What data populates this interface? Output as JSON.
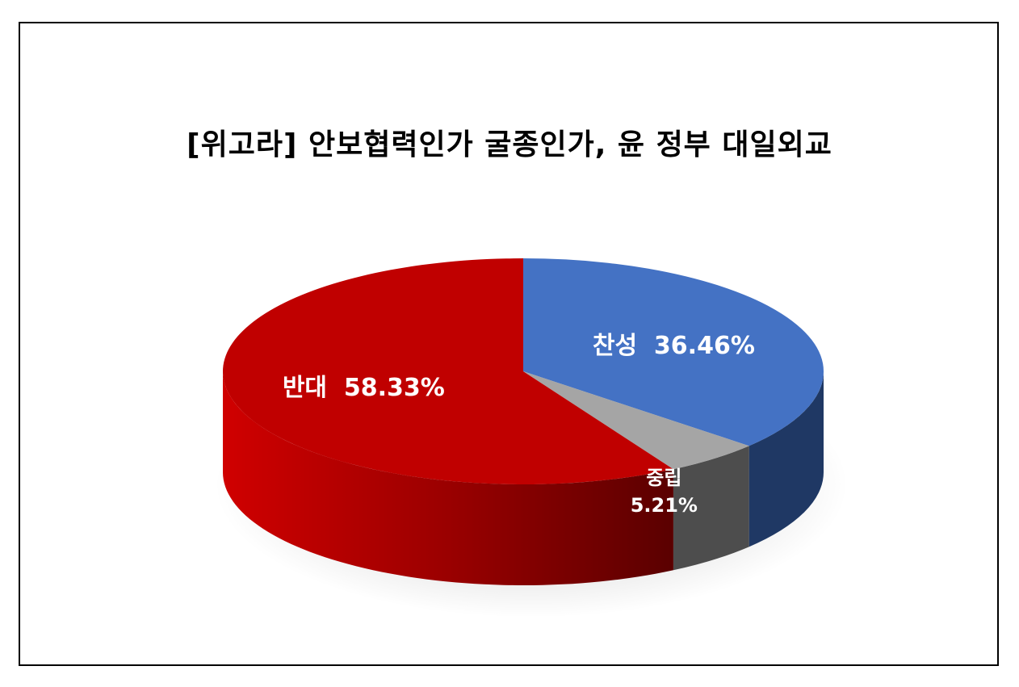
{
  "chart_data": {
    "type": "pie",
    "title": "[위고라] 안보협력인가 굴종인가, 윤 정부 대일외교",
    "slices": [
      {
        "label": "찬성",
        "value": 36.46,
        "value_text": "36.46%",
        "color": "#4472c4",
        "side_color": "#1f3864"
      },
      {
        "label": "중립",
        "value": 5.21,
        "value_text": "5.21%",
        "color": "#a5a5a5",
        "side_color": "#4d4d4d"
      },
      {
        "label": "반대",
        "value": 58.33,
        "value_text": "58.33%",
        "color": "#c00000",
        "side_color": "#8b0000"
      }
    ],
    "legend": "none",
    "style": "3d"
  }
}
